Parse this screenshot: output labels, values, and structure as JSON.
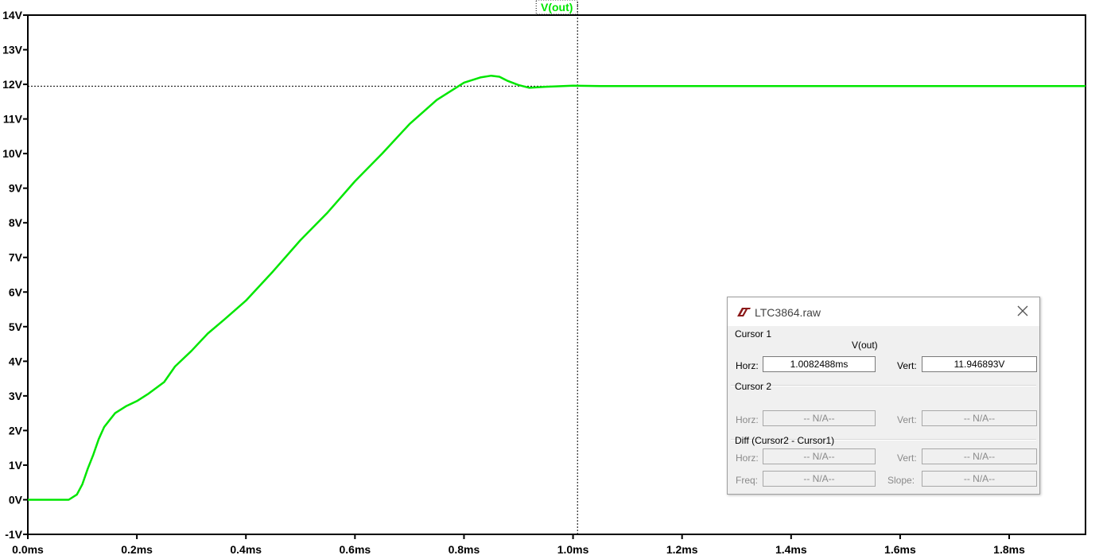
{
  "trace": {
    "name": "V(out)",
    "color": "#00e600"
  },
  "chart_data": {
    "type": "line",
    "title": "V(out)",
    "xlabel": "",
    "ylabel": "",
    "xlim": [
      0,
      1.94
    ],
    "ylim": [
      -1,
      14
    ],
    "x_ticks": [
      0.0,
      0.2,
      0.4,
      0.6,
      0.8,
      1.0,
      1.2,
      1.4,
      1.6,
      1.8
    ],
    "x_tick_labels": [
      "0.0ms",
      "0.2ms",
      "0.4ms",
      "0.6ms",
      "0.8ms",
      "1.0ms",
      "1.2ms",
      "1.4ms",
      "1.6ms",
      "1.8ms"
    ],
    "y_ticks": [
      14,
      13,
      12,
      11,
      10,
      9,
      8,
      7,
      6,
      5,
      4,
      3,
      2,
      1,
      0,
      -1
    ],
    "y_tick_labels": [
      "14V",
      "13V",
      "12V",
      "11V",
      "10V",
      "9V",
      "8V",
      "7V",
      "6V",
      "5V",
      "4V",
      "3V",
      "2V",
      "1V",
      "0V",
      "-1V"
    ],
    "grid": false,
    "series": [
      {
        "name": "V(out)",
        "x": [
          0,
          0.05,
          0.075,
          0.09,
          0.1,
          0.11,
          0.12,
          0.13,
          0.14,
          0.15,
          0.16,
          0.18,
          0.2,
          0.22,
          0.25,
          0.27,
          0.3,
          0.33,
          0.36,
          0.4,
          0.45,
          0.5,
          0.55,
          0.6,
          0.65,
          0.7,
          0.75,
          0.8,
          0.83,
          0.85,
          0.865,
          0.88,
          0.9,
          0.92,
          0.95,
          1.0,
          1.05,
          1.2,
          1.4,
          1.6,
          1.8,
          1.94
        ],
        "y": [
          0,
          0,
          0,
          0.15,
          0.45,
          0.9,
          1.3,
          1.75,
          2.1,
          2.3,
          2.5,
          2.7,
          2.85,
          3.05,
          3.4,
          3.85,
          4.3,
          4.8,
          5.2,
          5.75,
          6.6,
          7.5,
          8.3,
          9.2,
          10.0,
          10.85,
          11.55,
          12.05,
          12.2,
          12.25,
          12.22,
          12.1,
          11.98,
          11.9,
          11.93,
          11.96,
          11.95,
          11.95,
          11.95,
          11.95,
          11.95,
          11.95
        ]
      }
    ],
    "cursor": {
      "x": 1.0082488,
      "y": 11.946893
    }
  },
  "dialog": {
    "title": "LTC3864.raw",
    "cursor1_label": "Cursor 1",
    "cursor1_trace": "V(out)",
    "horz_label": "Horz:",
    "vert_label": "Vert:",
    "cursor1_horz": "1.0082488ms",
    "cursor1_vert": "11.946893V",
    "cursor2_label": "Cursor 2",
    "cursor2_horz": "-- N/A--",
    "cursor2_vert": "-- N/A--",
    "diff_label": "Diff (Cursor2 - Cursor1)",
    "diff_horz": "-- N/A--",
    "diff_vert": "-- N/A--",
    "freq_label": "Freq:",
    "slope_label": "Slope:",
    "diff_freq": "-- N/A--",
    "diff_slope": "-- N/A--"
  }
}
